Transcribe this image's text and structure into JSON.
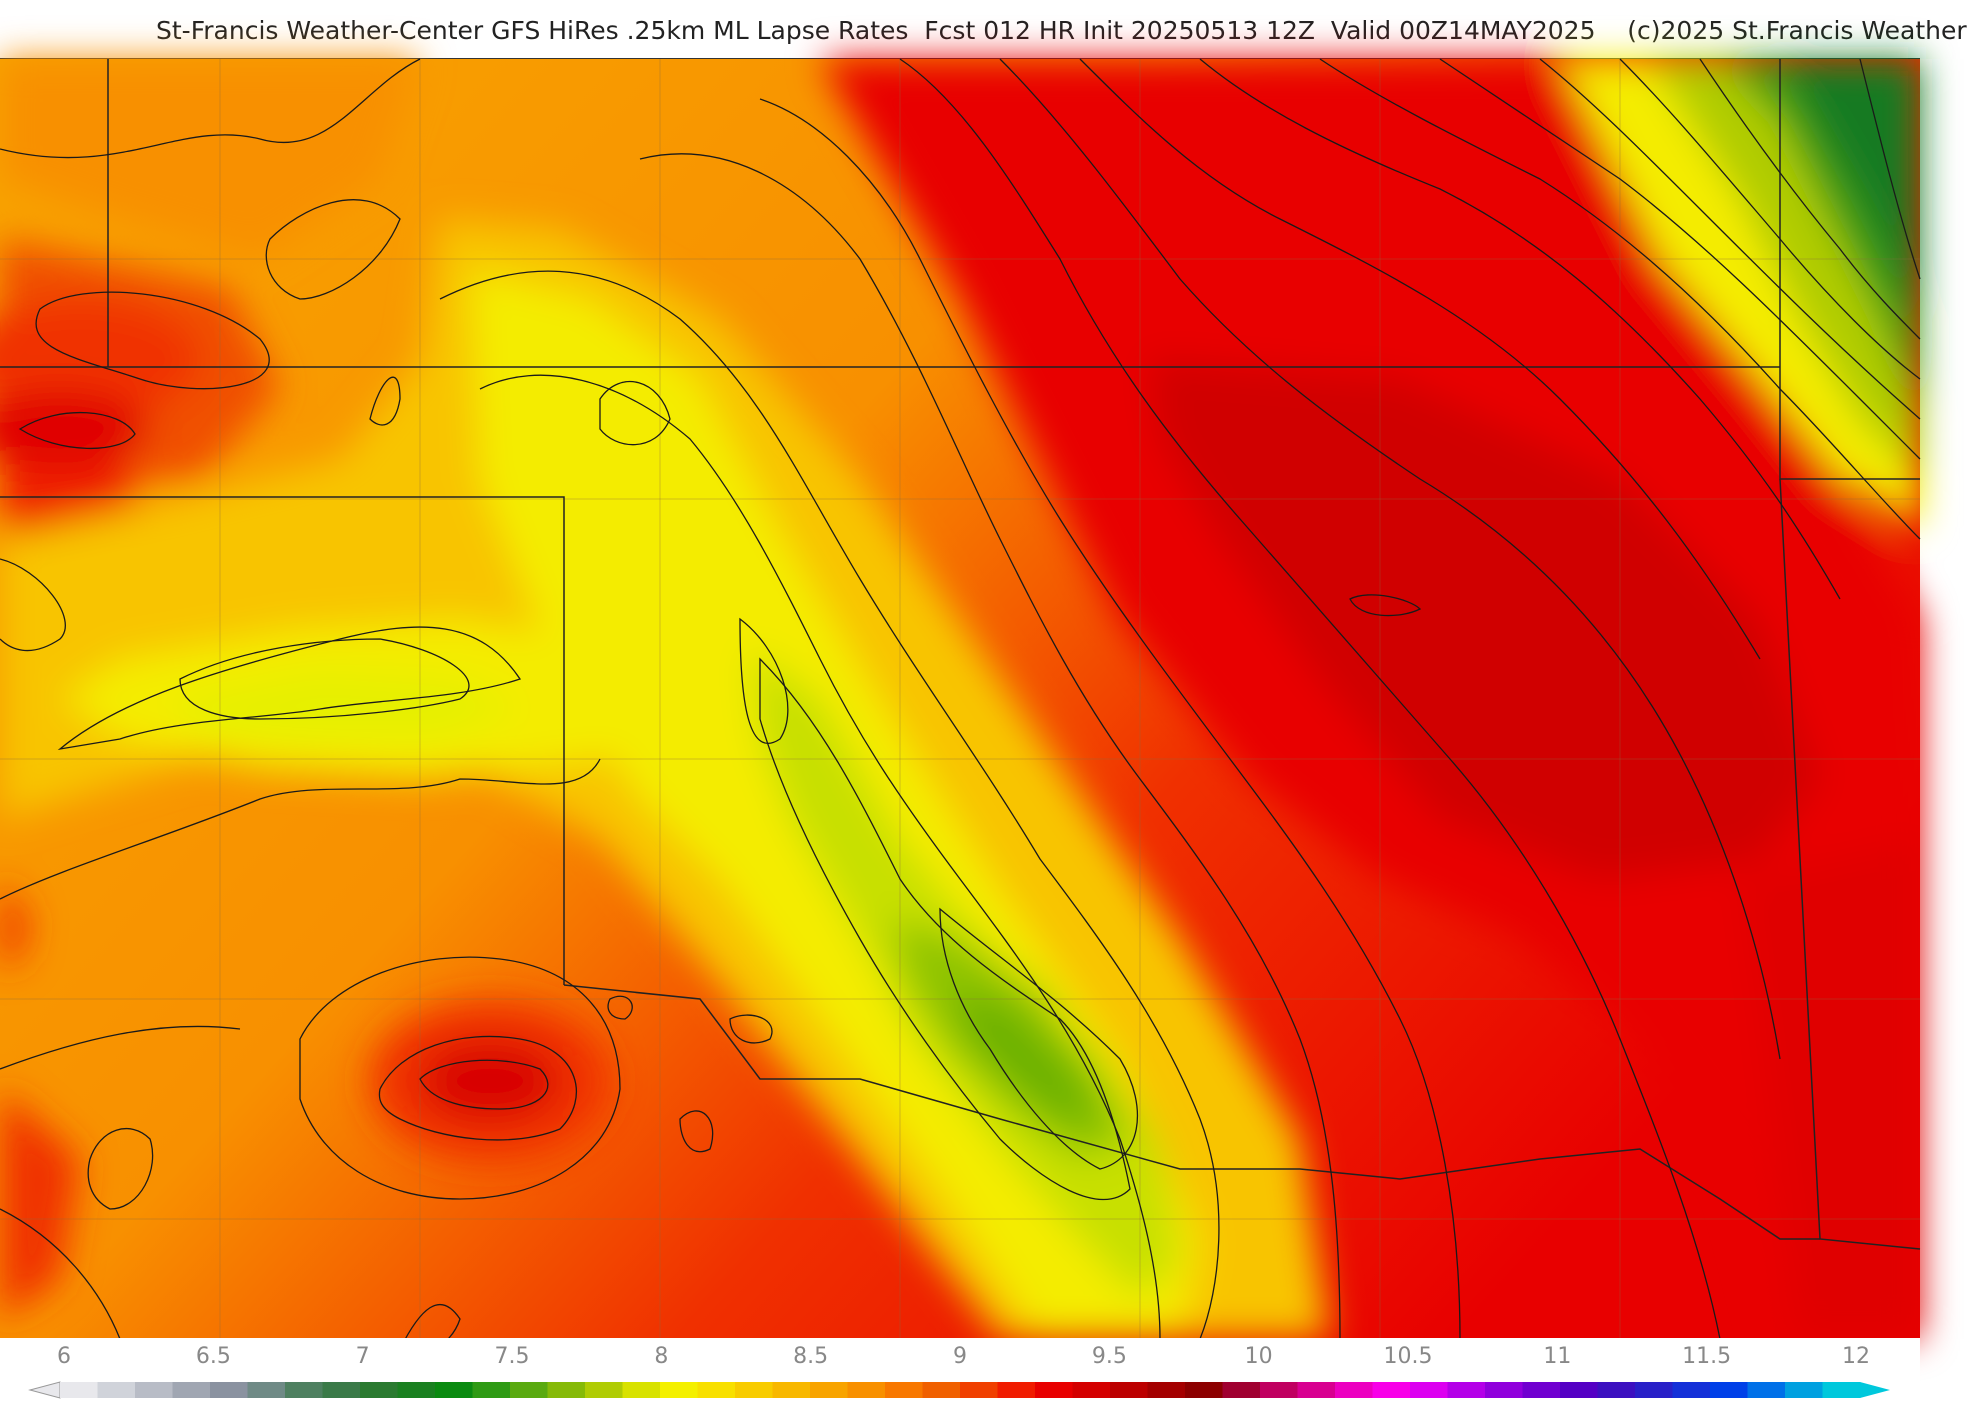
{
  "header": {
    "title": "St-Francis Weather-Center GFS HiRes .25km ML Lapse Rates  Fcst 012 HR Init 20250513 12Z  Valid 00Z14MAY2025    (c)2025 St.Francis Weather"
  },
  "colorbar": {
    "ticks": [
      "6",
      "6.5",
      "7",
      "7.5",
      "8",
      "8.5",
      "9",
      "9.5",
      "10",
      "10.5",
      "11",
      "11.5",
      "12"
    ],
    "colors": [
      "#e8e8ec",
      "#d0d3da",
      "#b8bcc6",
      "#a0a6b2",
      "#8a92a0",
      "#6f8a86",
      "#4e8060",
      "#3a7a48",
      "#2a7a30",
      "#1a8020",
      "#0a8a10",
      "#2e9a14",
      "#5aaa10",
      "#86ba08",
      "#b0cc04",
      "#d8e200",
      "#f4f000",
      "#f8e000",
      "#f8cc00",
      "#f8b800",
      "#f8a400",
      "#f89000",
      "#f87800",
      "#f06000",
      "#f04000",
      "#f01c00",
      "#e80000",
      "#d40000",
      "#bc0000",
      "#a40000",
      "#8c0000",
      "#a00030",
      "#c00060",
      "#d80090",
      "#ec00c0",
      "#f800e8",
      "#dc00f0",
      "#b400e8",
      "#9000dc",
      "#7000d0",
      "#5400c4",
      "#3c10c0",
      "#2820c8",
      "#1430d8",
      "#0040e8",
      "#0070e8",
      "#00a0e0",
      "#00c8dc"
    ]
  }
}
